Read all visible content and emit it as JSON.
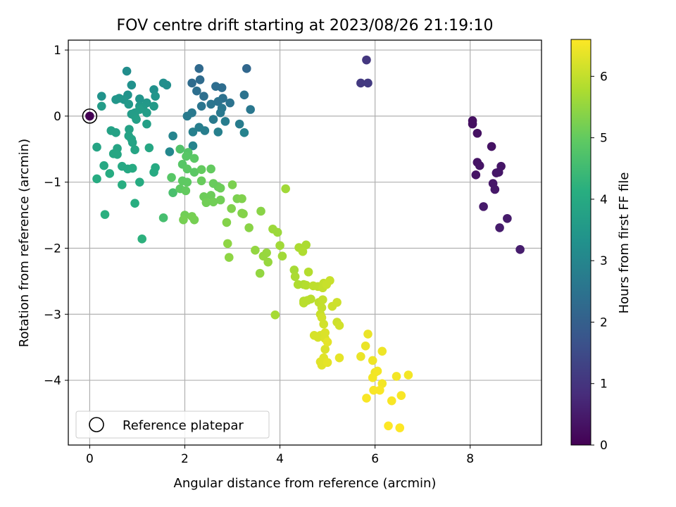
{
  "chart_data": {
    "type": "scatter",
    "title": "FOV centre drift starting at 2023/08/26 21:19:10",
    "xlabel": "Angular distance from reference (arcmin)",
    "ylabel": "Rotation from reference (arcmin)",
    "xlim": [
      -0.45,
      9.5
    ],
    "ylim": [
      -4.98,
      1.15
    ],
    "xticks": [
      0,
      2,
      4,
      6,
      8
    ],
    "yticks": [
      -4,
      -3,
      -2,
      -1,
      0,
      1
    ],
    "grid": true,
    "legend": {
      "placement": "lower-left",
      "entries": [
        "Reference platepar"
      ]
    },
    "reference_point": {
      "x": 0,
      "y": 0,
      "label": "Reference platepar"
    },
    "colorbar": {
      "label": "Hours from first FF file",
      "colormap": "viridis",
      "range": [
        0,
        6.6
      ],
      "ticks": [
        0,
        1,
        2,
        3,
        4,
        5,
        6
      ]
    },
    "points": [
      [
        8.05,
        -0.07,
        0.28
      ],
      [
        8.05,
        -0.12,
        0.28
      ],
      [
        8.15,
        -0.26,
        0.3
      ],
      [
        8.45,
        -0.46,
        0.32
      ],
      [
        8.15,
        -0.7,
        0.34
      ],
      [
        8.2,
        -0.75,
        0.36
      ],
      [
        8.12,
        -0.89,
        0.36
      ],
      [
        8.65,
        -0.76,
        0.38
      ],
      [
        8.6,
        -0.85,
        0.4
      ],
      [
        8.55,
        -0.86,
        0.4
      ],
      [
        8.48,
        -1.02,
        0.42
      ],
      [
        8.52,
        -1.11,
        0.44
      ],
      [
        8.28,
        -1.37,
        0.46
      ],
      [
        8.78,
        -1.55,
        0.48
      ],
      [
        8.62,
        -1.69,
        0.5
      ],
      [
        9.05,
        -2.02,
        0.52
      ],
      [
        5.82,
        0.85,
        1.05
      ],
      [
        5.7,
        0.5,
        1.1
      ],
      [
        5.85,
        0.5,
        1.12
      ],
      [
        3.3,
        0.72,
        2.2
      ],
      [
        2.3,
        0.72,
        2.25
      ],
      [
        2.32,
        0.55,
        2.3
      ],
      [
        2.15,
        0.5,
        2.3
      ],
      [
        2.65,
        0.45,
        2.35
      ],
      [
        2.78,
        0.43,
        2.35
      ],
      [
        2.25,
        0.38,
        2.4
      ],
      [
        2.4,
        0.3,
        2.4
      ],
      [
        2.8,
        0.27,
        2.45
      ],
      [
        2.7,
        0.22,
        2.5
      ],
      [
        2.95,
        0.2,
        2.5
      ],
      [
        3.25,
        0.32,
        2.5
      ],
      [
        2.55,
        0.18,
        2.55
      ],
      [
        2.35,
        0.15,
        2.55
      ],
      [
        2.78,
        0.12,
        2.6
      ],
      [
        3.38,
        0.1,
        2.6
      ],
      [
        2.75,
        0.05,
        2.65
      ],
      [
        2.15,
        0.05,
        2.65
      ],
      [
        2.05,
        0.0,
        2.7
      ],
      [
        2.6,
        -0.05,
        2.7
      ],
      [
        2.85,
        -0.08,
        2.75
      ],
      [
        3.15,
        -0.12,
        2.75
      ],
      [
        2.3,
        -0.17,
        2.8
      ],
      [
        2.42,
        -0.22,
        2.8
      ],
      [
        2.17,
        -0.24,
        2.85
      ],
      [
        2.7,
        -0.24,
        2.85
      ],
      [
        3.25,
        -0.25,
        2.9
      ],
      [
        1.75,
        -0.3,
        2.95
      ],
      [
        2.17,
        -0.45,
        2.95
      ],
      [
        1.68,
        -0.54,
        3.05
      ],
      [
        0.78,
        0.68,
        3.2
      ],
      [
        1.55,
        0.5,
        3.25
      ],
      [
        1.62,
        0.47,
        3.25
      ],
      [
        0.88,
        0.47,
        3.3
      ],
      [
        1.35,
        0.4,
        3.3
      ],
      [
        0.25,
        0.3,
        3.35
      ],
      [
        0.8,
        0.32,
        3.35
      ],
      [
        0.62,
        0.27,
        3.4
      ],
      [
        1.05,
        0.26,
        3.4
      ],
      [
        1.38,
        0.3,
        3.4
      ],
      [
        0.72,
        0.25,
        3.45
      ],
      [
        0.55,
        0.25,
        3.45
      ],
      [
        1.2,
        0.2,
        3.5
      ],
      [
        0.82,
        0.18,
        3.5
      ],
      [
        1.05,
        0.15,
        3.5
      ],
      [
        1.35,
        0.15,
        3.55
      ],
      [
        1.12,
        0.13,
        3.55
      ],
      [
        0.25,
        0.15,
        3.6
      ],
      [
        0.95,
        0.05,
        3.6
      ],
      [
        0.88,
        0.03,
        3.6
      ],
      [
        0.95,
        0.0,
        3.65
      ],
      [
        1.2,
        0.05,
        3.65
      ],
      [
        1.05,
        0.1,
        3.65
      ],
      [
        0.98,
        -0.05,
        3.7
      ],
      [
        1.2,
        -0.12,
        3.7
      ],
      [
        0.45,
        -0.22,
        3.75
      ],
      [
        0.55,
        -0.25,
        3.75
      ],
      [
        0.83,
        -0.2,
        3.75
      ],
      [
        0.82,
        -0.3,
        3.8
      ],
      [
        0.88,
        -0.35,
        3.8
      ],
      [
        0.9,
        -0.4,
        3.8
      ],
      [
        0.15,
        -0.47,
        3.85
      ],
      [
        0.58,
        -0.49,
        3.85
      ],
      [
        0.95,
        -0.51,
        3.85
      ],
      [
        1.25,
        -0.48,
        3.9
      ],
      [
        0.5,
        -0.57,
        3.9
      ],
      [
        0.58,
        -0.58,
        3.9
      ],
      [
        0.3,
        -0.75,
        3.95
      ],
      [
        0.68,
        -0.76,
        3.95
      ],
      [
        0.8,
        -0.8,
        3.95
      ],
      [
        0.9,
        -0.79,
        4.0
      ],
      [
        1.38,
        -0.78,
        4.0
      ],
      [
        1.35,
        -0.85,
        4.0
      ],
      [
        0.42,
        -0.87,
        4.05
      ],
      [
        0.15,
        -0.95,
        4.05
      ],
      [
        1.05,
        -1.0,
        4.05
      ],
      [
        0.68,
        -1.04,
        4.1
      ],
      [
        0.95,
        -1.32,
        4.1
      ],
      [
        0.32,
        -1.49,
        4.15
      ],
      [
        1.1,
        -1.86,
        4.2
      ],
      [
        1.55,
        -1.54,
        4.6
      ],
      [
        1.75,
        -1.16,
        4.65
      ],
      [
        1.9,
        -0.5,
        4.75
      ],
      [
        2.07,
        -0.55,
        4.8
      ],
      [
        2.03,
        -0.61,
        4.85
      ],
      [
        1.72,
        -0.93,
        4.85
      ],
      [
        1.95,
        -0.73,
        4.85
      ],
      [
        2.05,
        -0.8,
        4.9
      ],
      [
        2.2,
        -0.64,
        4.9
      ],
      [
        2.2,
        -0.85,
        4.9
      ],
      [
        1.95,
        -0.98,
        4.95
      ],
      [
        2.05,
        -1.0,
        4.95
      ],
      [
        1.9,
        -1.1,
        4.95
      ],
      [
        2.02,
        -1.13,
        5.0
      ],
      [
        2.35,
        -0.81,
        5.0
      ],
      [
        2.55,
        -0.8,
        5.0
      ],
      [
        2.35,
        -0.98,
        5.05
      ],
      [
        2.6,
        -1.02,
        5.05
      ],
      [
        2.7,
        -1.07,
        5.05
      ],
      [
        2.75,
        -1.09,
        5.1
      ],
      [
        2.4,
        -1.22,
        5.1
      ],
      [
        2.55,
        -1.2,
        5.1
      ],
      [
        2.45,
        -1.31,
        5.15
      ],
      [
        2.6,
        -1.3,
        5.15
      ],
      [
        2.75,
        -1.27,
        5.15
      ],
      [
        2.0,
        -1.5,
        5.15
      ],
      [
        2.15,
        -1.52,
        5.2
      ],
      [
        2.2,
        -1.57,
        5.2
      ],
      [
        1.97,
        -1.57,
        5.2
      ],
      [
        3.0,
        -1.04,
        5.25
      ],
      [
        3.1,
        -1.25,
        5.25
      ],
      [
        3.2,
        -1.25,
        5.3
      ],
      [
        2.98,
        -1.4,
        5.3
      ],
      [
        3.2,
        -1.47,
        5.3
      ],
      [
        2.88,
        -1.61,
        5.35
      ],
      [
        3.23,
        -1.48,
        5.35
      ],
      [
        3.35,
        -1.69,
        5.4
      ],
      [
        3.6,
        -1.44,
        5.4
      ],
      [
        2.9,
        -1.93,
        5.45
      ],
      [
        2.93,
        -2.14,
        5.45
      ],
      [
        3.48,
        -2.03,
        5.5
      ],
      [
        3.58,
        -2.38,
        5.5
      ],
      [
        3.65,
        -2.12,
        5.55
      ],
      [
        3.72,
        -2.07,
        5.55
      ],
      [
        3.75,
        -2.21,
        5.55
      ],
      [
        3.85,
        -1.71,
        5.6
      ],
      [
        3.95,
        -1.76,
        5.6
      ],
      [
        4.0,
        -1.96,
        5.65
      ],
      [
        4.05,
        -2.12,
        5.65
      ],
      [
        4.12,
        -1.1,
        5.65
      ],
      [
        3.9,
        -3.01,
        5.7
      ],
      [
        4.3,
        -2.33,
        5.7
      ],
      [
        4.32,
        -2.43,
        5.75
      ],
      [
        4.4,
        -1.99,
        5.75
      ],
      [
        4.55,
        -1.95,
        5.75
      ],
      [
        4.48,
        -2.05,
        5.8
      ],
      [
        4.38,
        -2.55,
        5.8
      ],
      [
        4.5,
        -2.55,
        5.8
      ],
      [
        4.55,
        -2.56,
        5.85
      ],
      [
        4.5,
        -2.8,
        5.85
      ],
      [
        4.6,
        -2.36,
        5.85
      ],
      [
        4.58,
        -2.79,
        5.9
      ],
      [
        4.5,
        -2.83,
        5.9
      ],
      [
        4.65,
        -2.77,
        5.9
      ],
      [
        4.7,
        -2.57,
        5.95
      ],
      [
        4.8,
        -2.58,
        5.95
      ],
      [
        4.82,
        -2.82,
        5.95
      ],
      [
        4.88,
        -2.9,
        6.0
      ],
      [
        4.9,
        -2.78,
        6.0
      ],
      [
        4.9,
        -2.6,
        6.0
      ],
      [
        4.92,
        -2.53,
        6.0
      ],
      [
        4.85,
        -3.0,
        6.05
      ],
      [
        4.98,
        -2.55,
        6.05
      ],
      [
        5.05,
        -2.49,
        6.05
      ],
      [
        5.1,
        -2.88,
        6.1
      ],
      [
        5.2,
        -2.82,
        6.1
      ],
      [
        5.2,
        -3.12,
        6.1
      ],
      [
        5.25,
        -3.17,
        6.15
      ],
      [
        4.88,
        -3.05,
        6.15
      ],
      [
        4.92,
        -3.15,
        6.15
      ],
      [
        4.85,
        -3.32,
        6.2
      ],
      [
        4.72,
        -3.32,
        6.2
      ],
      [
        4.8,
        -3.35,
        6.2
      ],
      [
        4.95,
        -3.28,
        6.25
      ],
      [
        4.95,
        -3.37,
        6.25
      ],
      [
        4.95,
        -3.53,
        6.25
      ],
      [
        4.85,
        -3.72,
        6.3
      ],
      [
        4.92,
        -3.66,
        6.3
      ],
      [
        4.88,
        -3.77,
        6.3
      ],
      [
        5.0,
        -3.73,
        6.35
      ],
      [
        5.25,
        -3.66,
        6.35
      ],
      [
        5.0,
        -3.42,
        6.35
      ],
      [
        5.7,
        -3.64,
        6.4
      ],
      [
        5.85,
        -3.3,
        6.4
      ],
      [
        5.8,
        -3.48,
        6.4
      ],
      [
        5.95,
        -3.7,
        6.45
      ],
      [
        6.15,
        -3.56,
        6.45
      ],
      [
        6.0,
        -3.88,
        6.45
      ],
      [
        6.05,
        -3.86,
        6.5
      ],
      [
        5.95,
        -3.96,
        6.5
      ],
      [
        6.45,
        -3.94,
        6.5
      ],
      [
        6.7,
        -3.92,
        6.5
      ],
      [
        6.15,
        -4.05,
        6.5
      ],
      [
        5.97,
        -4.15,
        6.55
      ],
      [
        6.1,
        -4.15,
        6.55
      ],
      [
        5.82,
        -4.27,
        6.55
      ],
      [
        6.35,
        -4.31,
        6.55
      ],
      [
        6.55,
        -4.23,
        6.55
      ],
      [
        6.28,
        -4.69,
        6.6
      ],
      [
        6.52,
        -4.72,
        6.6
      ]
    ]
  }
}
